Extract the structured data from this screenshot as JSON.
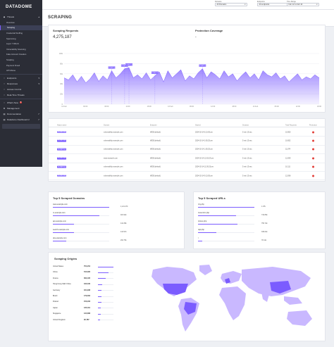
{
  "brand": "DATADOME",
  "sidebar": {
    "section_threats": "Threats",
    "threat_items": [
      "Overview",
      "Scraping",
      "Credential Stuffing",
      "Spamming",
      "Layer 7 DDoS",
      "Vulnerability Scanning",
      "Fake Account Creation",
      "Scalping",
      "Payment Fraud",
      "API Abuse"
    ],
    "active_index": 1,
    "endpoints": "Endpoints",
    "responses": "Responses",
    "access_control": "Access Control",
    "real_time_threats": "Real-Time Threats",
    "whats_new": "What's New",
    "whats_new_badge": "5",
    "management": "Management",
    "documentation": "Documentation",
    "dashboard": "Datadome Dashboard 2"
  },
  "filters": {
    "domains_label": "Domains",
    "domains_value": "All Domains",
    "endpoints_label": "Endpoints",
    "endpoints_value": "All endpoints",
    "timerange_label": "Time Range",
    "timerange_value": "Feb 12 to Feb 14"
  },
  "page_title": "SCRAPING",
  "requests": {
    "title": "Scraping Requests",
    "value": "4,275,187"
  },
  "protection": {
    "title": "Protection Coverage",
    "value": "-"
  },
  "chart_data": {
    "type": "area",
    "x_tick_labels": [
      "12 Feb",
      "00:00",
      "06:00",
      "12:00",
      "18:00",
      "13 Feb",
      "06:00",
      "12:00",
      "18:00",
      "14 Feb",
      "06:00",
      "12:00",
      "18:00"
    ],
    "y_tick_labels": [
      "100k",
      "80k",
      "60k",
      "40k",
      "20k",
      "0"
    ],
    "ylim": [
      0,
      100000
    ],
    "values": [
      52000,
      48000,
      58000,
      44000,
      55000,
      42000,
      50000,
      62000,
      45000,
      56000,
      48000,
      66000,
      52000,
      60000,
      70000,
      72000,
      52000,
      58000,
      50000,
      62000,
      48000,
      56000,
      64000,
      44000,
      66000,
      52000,
      60000,
      68000,
      46000,
      56000,
      50000,
      62000,
      70000,
      52000,
      64000,
      58000,
      50000,
      66000,
      54000,
      60000,
      46000,
      56000,
      64000,
      52000,
      60000,
      48000,
      66000,
      58000,
      54000,
      62000,
      50000,
      56000,
      44000,
      52000,
      60000,
      48000,
      54000,
      50000,
      58000,
      52000
    ],
    "color": "#7b5cff",
    "annotations": [
      {
        "index": 11,
        "label": "SCRAP bot"
      },
      {
        "index": 14,
        "label": "SCRAP bot"
      },
      {
        "index": 15,
        "label": "SCRAP bot"
      },
      {
        "index": 21,
        "label": "SCRAP bot"
      },
      {
        "index": 32,
        "label": "SCRAP bot"
      }
    ]
  },
  "table": {
    "headers": [
      "Attack name",
      "Domain",
      "Endpoint",
      "Started",
      "Duration",
      "Total Requests",
      "Protection"
    ],
    "rows": [
      [
        "SCRAP bot",
        "vulnerability.example.com",
        "WEB (default)",
        "2024-02-14 6:13:05 pm",
        "5 min 15 sec",
        "10,950"
      ],
      [
        "SCRAP bot",
        "vulnerability.example.com",
        "WEB (default)",
        "2024-02-14 3:05:25 pm",
        "5 min 15 sec",
        "10,652"
      ],
      [
        "SCRAP bot",
        "vulnerability.example.com",
        "WEB (default)",
        "2024-02-14 1:05:25 pm",
        "5 min 15 sec",
        "11,874"
      ],
      [
        "SCRAP bot",
        "www.example.com",
        "WEB (default)",
        "2024-02-14 12:03:25 pm",
        "5 min 15 sec",
        "12,099"
      ],
      [
        "SCRAP bot",
        "vulnerability.example.com",
        "WEB (default)",
        "2024-02-14 11:05:23 pm",
        "5 min 15 sec",
        "10,111"
      ],
      [
        "SCRAP bot",
        "vulnerability.example.com",
        "WEB (default)",
        "2024-02-14 9:13:05 pm",
        "5 min 15 sec",
        "12,098"
      ]
    ],
    "protection_color": "#e2403a"
  },
  "top_domains": {
    "title": "Top 5 Scraped Domains",
    "items": [
      {
        "name": "www.example.com",
        "value": "1,121.47k",
        "fraction": 1.0
      },
      {
        "name": "m.example.com",
        "value": "921.92k",
        "fraction": 0.82
      },
      {
        "name": "api.example.com",
        "value": "412.38k",
        "fraction": 0.37
      },
      {
        "name": "search.example.com",
        "value": "413.97k",
        "fraction": 0.37
      },
      {
        "name": "dev.example.com",
        "value": "264.75k",
        "fraction": 0.24
      }
    ]
  },
  "top_urls": {
    "title": "Top 5 Scraped URLs",
    "items": [
      {
        "name": "/my.php",
        "value": "1.07k",
        "fraction": 1.0
      },
      {
        "name": "/recent/on.php",
        "value": "716.86k",
        "fraction": 0.67
      },
      {
        "name": "/prices.php",
        "value": "756.72k",
        "fraction": 0.7
      },
      {
        "name": "/api.php",
        "value": "339.04k",
        "fraction": 0.32
      },
      {
        "name": "/",
        "value": "78.11k",
        "fraction": 0.07
      }
    ]
  },
  "origins": {
    "title": "Scraping Origins",
    "items": [
      {
        "name": "United States",
        "value": "754,254",
        "fraction": 1.0
      },
      {
        "name": "China",
        "value": "515,095",
        "fraction": 0.68
      },
      {
        "name": "France",
        "value": "362,195",
        "fraction": 0.48
      },
      {
        "name": "Hong Kong SAR China",
        "value": "195,430",
        "fraction": 0.26
      },
      {
        "name": "Germany",
        "value": "181,938",
        "fraction": 0.24
      },
      {
        "name": "Brazil",
        "value": "179,362",
        "fraction": 0.24
      },
      {
        "name": "Poland",
        "value": "156,203",
        "fraction": 0.21
      },
      {
        "name": "Japan",
        "value": "135,119",
        "fraction": 0.18
      },
      {
        "name": "Singapore",
        "value": "134,688",
        "fraction": 0.18
      },
      {
        "name": "United Kingdom",
        "value": "90,787",
        "fraction": 0.12
      }
    ],
    "map_color": "#c9b8ff",
    "map_highlight": "#7b5cff"
  }
}
